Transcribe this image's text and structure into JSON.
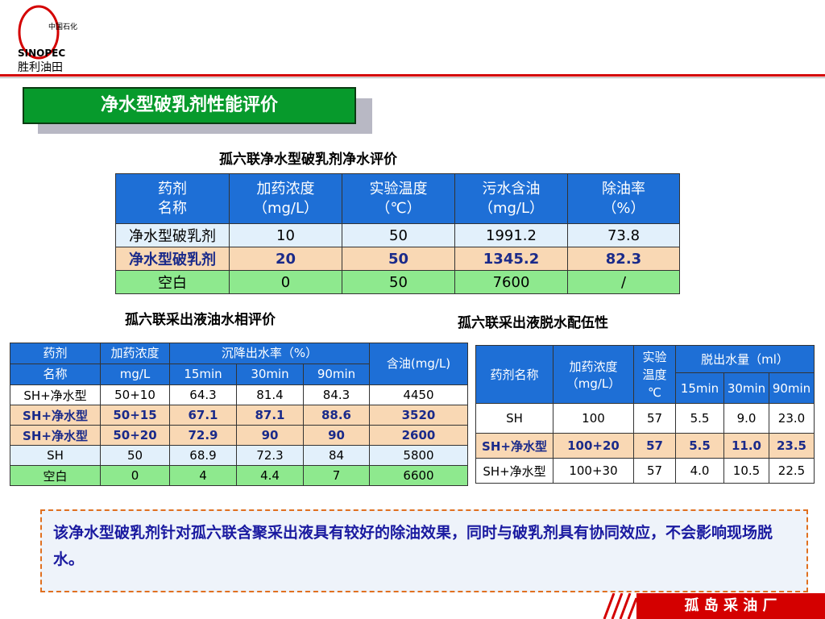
{
  "logo": {
    "cn": "中国石化",
    "brand": "SINOPEC",
    "sub": "胜利油田"
  },
  "title": "净水型破乳剂性能评价",
  "table1": {
    "caption": "孤六联净水型破乳剂净水评价",
    "header": [
      [
        "药剂",
        "名称"
      ],
      [
        "加药浓度",
        "（mg/L）"
      ],
      [
        "实验温度",
        "（℃）"
      ],
      [
        "污水含油",
        "（mg/L）"
      ],
      [
        "除油率",
        "（%）"
      ]
    ],
    "rows": [
      [
        "净水型破乳剂",
        "10",
        "50",
        "1991.2",
        "73.8"
      ],
      [
        "净水型破乳剂",
        "20",
        "50",
        "1345.2",
        "82.3"
      ],
      [
        "空白",
        "0",
        "50",
        "7600",
        "/"
      ]
    ]
  },
  "table2": {
    "caption": "孤六联采出液油水相评价",
    "header": {
      "drug": [
        "药剂",
        "名称"
      ],
      "dose": [
        "加药浓度",
        "mg/L"
      ],
      "settling": "沉降出水率（%）",
      "times": [
        "15min",
        "30min",
        "90min"
      ],
      "oil": "含油(mg/L)"
    },
    "rows": [
      [
        "SH+净水型",
        "50+10",
        "64.3",
        "81.4",
        "84.3",
        "4450"
      ],
      [
        "SH+净水型",
        "50+15",
        "67.1",
        "87.1",
        "88.6",
        "3520"
      ],
      [
        "SH+净水型",
        "50+20",
        "72.9",
        "90",
        "90",
        "2600"
      ],
      [
        "SH",
        "50",
        "68.9",
        "72.3",
        "84",
        "5800"
      ],
      [
        "空白",
        "0",
        "4",
        "4.4",
        "7",
        "6600"
      ]
    ]
  },
  "table3": {
    "caption": "孤六联采出液脱水配伍性",
    "header": {
      "drug": "药剂名称",
      "dose": [
        "加药浓度",
        "（mg/L）"
      ],
      "temp": [
        "实验",
        "温度",
        "℃"
      ],
      "water": "脱出水量（ml）",
      "times": [
        "15min",
        "30min",
        "90min"
      ]
    },
    "rows": [
      [
        "SH",
        "100",
        "57",
        "5.5",
        "9.0",
        "23.0"
      ],
      [
        "SH+净水型",
        "100+20",
        "57",
        "5.5",
        "11.0",
        "23.5"
      ],
      [
        "SH+净水型",
        "100+30",
        "57",
        "4.0",
        "10.5",
        "22.5"
      ]
    ]
  },
  "conclusion": "该净水型破乳剂针对孤六联含聚采出液具有较好的除油效果，同时与破乳剂具有协同效应，不会影响现场脱水。",
  "footer": "孤 岛 采 油 厂"
}
